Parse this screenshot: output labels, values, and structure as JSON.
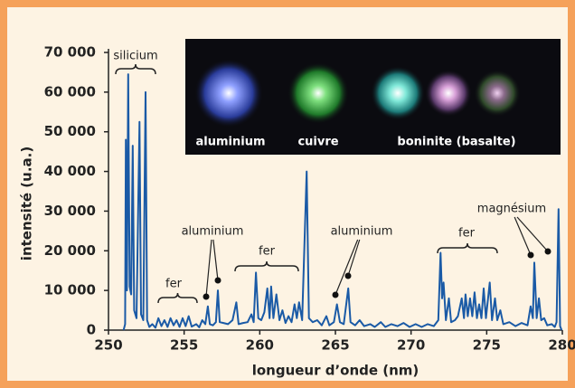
{
  "chart_data": {
    "type": "line",
    "xlabel": "longueur d’onde (nm)",
    "ylabel": "intensité (u.a.)",
    "color": "#1a5aa6",
    "xlim": [
      250,
      280
    ],
    "xticks": [
      250,
      255,
      260,
      265,
      270,
      275,
      280
    ],
    "ylim": [
      0,
      70000
    ],
    "yticks": [
      0,
      {
        "value": 10000,
        "label": "10 000"
      },
      {
        "value": 20000,
        "label": "20 000"
      },
      {
        "value": 30000,
        "label": "30 000"
      },
      {
        "value": 40000,
        "label": "40 000"
      },
      {
        "value": 50000,
        "label": "50 000"
      },
      {
        "value": 60000,
        "label": "60 000"
      },
      {
        "value": 70000,
        "label": "70 000"
      }
    ],
    "x": [
      251.0,
      251.1,
      251.15,
      251.22,
      251.3,
      251.4,
      251.5,
      251.6,
      251.7,
      251.85,
      252.05,
      252.15,
      252.3,
      252.45,
      252.55,
      252.7,
      252.9,
      253.1,
      253.3,
      253.5,
      253.7,
      253.9,
      254.1,
      254.3,
      254.5,
      254.7,
      254.9,
      255.1,
      255.3,
      255.5,
      255.8,
      256.0,
      256.2,
      256.4,
      256.57,
      256.7,
      256.9,
      257.1,
      257.23,
      257.35,
      257.6,
      257.9,
      258.2,
      258.45,
      258.6,
      258.9,
      259.2,
      259.45,
      259.6,
      259.75,
      259.9,
      260.1,
      260.3,
      260.5,
      260.65,
      260.75,
      260.9,
      261.1,
      261.3,
      261.5,
      261.7,
      261.9,
      262.1,
      262.3,
      262.45,
      262.6,
      262.8,
      263.1,
      263.25,
      263.5,
      263.8,
      264.1,
      264.4,
      264.6,
      264.9,
      265.1,
      265.3,
      265.55,
      265.85,
      266.0,
      266.3,
      266.6,
      266.9,
      267.3,
      267.6,
      268.0,
      268.3,
      268.7,
      269.1,
      269.5,
      269.9,
      270.3,
      270.7,
      271.1,
      271.5,
      271.8,
      271.95,
      272.05,
      272.15,
      272.3,
      272.5,
      272.65,
      272.9,
      273.1,
      273.35,
      273.5,
      273.6,
      273.75,
      273.9,
      274.05,
      274.2,
      274.35,
      274.5,
      274.65,
      274.8,
      274.95,
      275.2,
      275.35,
      275.55,
      275.7,
      275.9,
      276.1,
      276.5,
      276.9,
      277.3,
      277.7,
      277.9,
      278.05,
      278.15,
      278.3,
      278.45,
      278.6,
      278.8,
      279.0,
      279.3,
      279.5,
      279.62,
      279.75,
      279.85,
      279.95
    ],
    "values": [
      0,
      1500,
      48000,
      10000,
      64500,
      11000,
      9000,
      46500,
      5000,
      3000,
      52500,
      4000,
      2500,
      60000,
      2500,
      800,
      1500,
      600,
      3000,
      1000,
      2500,
      800,
      3000,
      1200,
      2500,
      800,
      3000,
      1000,
      3500,
      900,
      1500,
      700,
      2500,
      1500,
      6000,
      1500,
      1200,
      2000,
      10000,
      2000,
      1800,
      1500,
      2500,
      7000,
      1500,
      1800,
      2000,
      4000,
      2000,
      14500,
      3000,
      2500,
      4500,
      10500,
      3000,
      11000,
      3000,
      9000,
      2500,
      5000,
      1800,
      3500,
      2000,
      6500,
      3000,
      7000,
      2500,
      40000,
      3000,
      2000,
      2500,
      1200,
      3500,
      1200,
      2000,
      6500,
      2000,
      1500,
      10500,
      2000,
      1200,
      2500,
      1000,
      1500,
      800,
      2000,
      800,
      1500,
      1000,
      1800,
      800,
      1500,
      800,
      1500,
      1000,
      2500,
      19500,
      8000,
      12000,
      2500,
      8000,
      2000,
      2500,
      3500,
      8000,
      3000,
      9000,
      3500,
      8000,
      3500,
      9500,
      3000,
      6500,
      3000,
      10500,
      3000,
      12000,
      2500,
      8000,
      2500,
      5000,
      1500,
      2000,
      1000,
      1800,
      1200,
      6000,
      3000,
      17000,
      3000,
      8000,
      2500,
      3000,
      1200,
      1500,
      800,
      2000,
      30500,
      1000,
      0
    ],
    "annotations": [
      "silicium",
      "fer",
      "aluminium",
      "fer",
      "aluminium",
      "fer",
      "magnésium"
    ],
    "inset_labels": [
      "aluminium",
      "cuivre",
      "boninite (basalte)"
    ]
  }
}
